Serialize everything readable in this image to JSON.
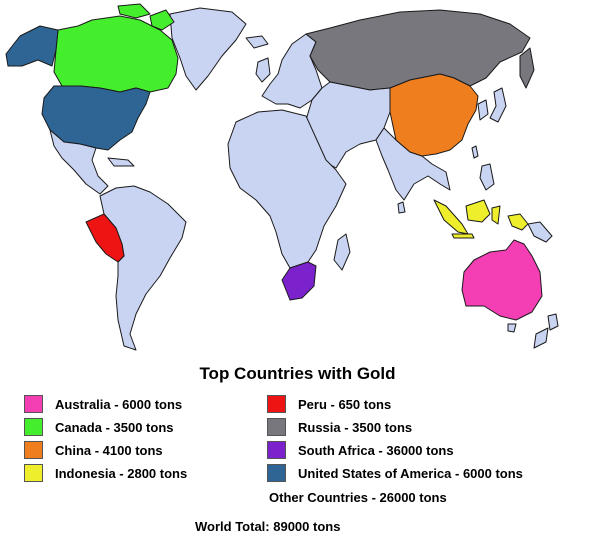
{
  "map": {
    "title": "Top Countries with Gold",
    "colors": {
      "ocean": "#ffffff",
      "land_default": "#c9d3f2",
      "border": "#1a1a1a",
      "australia": "#f43fb4",
      "canada": "#44ee2c",
      "china": "#ef7f1e",
      "indonesia": "#eeee2c",
      "peru": "#ef1414",
      "russia": "#77777d",
      "south_africa": "#7b22cc",
      "usa": "#2e6594"
    },
    "legend": [
      {
        "id": "australia",
        "label": "Australia - 6000 tons",
        "color": "#f43fb4",
        "tons": 6000
      },
      {
        "id": "canada",
        "label": "Canada - 3500 tons",
        "color": "#44ee2c",
        "tons": 3500
      },
      {
        "id": "china",
        "label": "China - 4100 tons",
        "color": "#ef7f1e",
        "tons": 4100
      },
      {
        "id": "indonesia",
        "label": "Indonesia - 2800 tons",
        "color": "#eeee2c",
        "tons": 2800
      },
      {
        "id": "peru",
        "label": "Peru - 650 tons",
        "color": "#ef1414",
        "tons": 650
      },
      {
        "id": "russia",
        "label": "Russia - 3500 tons",
        "color": "#77777d",
        "tons": 3500
      },
      {
        "id": "south-africa",
        "label": "South Africa - 36000 tons",
        "color": "#7b22cc",
        "tons": 36000
      },
      {
        "id": "usa",
        "label": "United States of America - 6000 tons",
        "color": "#2e6594",
        "tons": 6000
      }
    ],
    "other_countries": "Other Countries - 26000 tons",
    "world_total": "World Total: 89000 tons"
  }
}
